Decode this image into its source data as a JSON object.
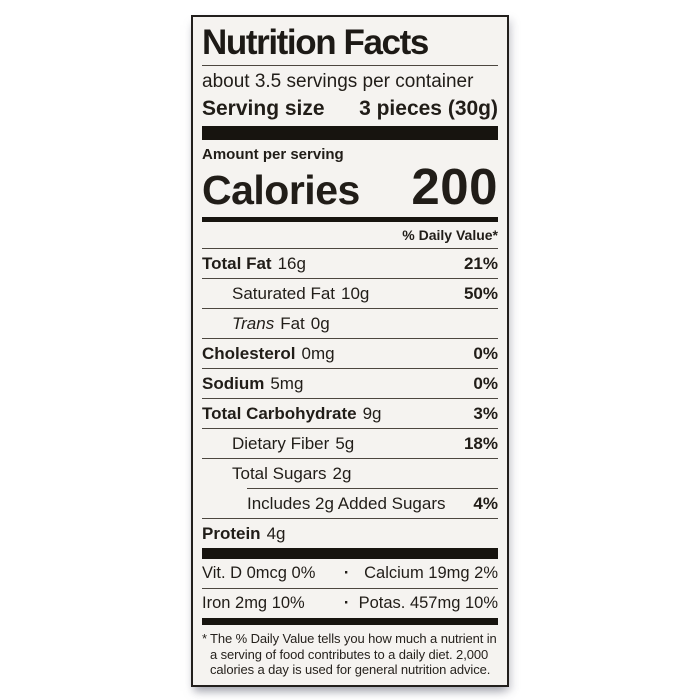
{
  "colors": {
    "page_bg": "#ffffff",
    "label_bg": "#f5f3f0",
    "ink": "#1d1a16",
    "bar": "#17140f",
    "hairline": "#4c463f"
  },
  "header": {
    "title": "Nutrition Facts",
    "servings_per_container": "about 3.5 servings per container",
    "serving_size_label": "Serving size",
    "serving_size_value": "3 pieces (30g)"
  },
  "calories": {
    "amount_per_serving": "Amount per serving",
    "label": "Calories",
    "value": "200"
  },
  "daily_value_header": "% Daily Value*",
  "rows": [
    {
      "name": "Total Fat",
      "amount": "16g",
      "dv": "21%"
    },
    {
      "name": "Saturated Fat",
      "amount": "10g",
      "dv": "50%"
    },
    {
      "name_italic": "Trans",
      "name": "Fat",
      "amount": "0g",
      "dv": ""
    },
    {
      "name": "Cholesterol",
      "amount": "0mg",
      "dv": "0%"
    },
    {
      "name": "Sodium",
      "amount": "5mg",
      "dv": "0%"
    },
    {
      "name": "Total Carbohydrate",
      "amount": "9g",
      "dv": "3%"
    },
    {
      "name": "Dietary Fiber",
      "amount": "5g",
      "dv": "18%"
    },
    {
      "name": "Total Sugars",
      "amount": "2g",
      "dv": ""
    },
    {
      "name": "Includes 2g Added Sugars",
      "amount": "",
      "dv": "4%"
    },
    {
      "name": "Protein",
      "amount": "4g",
      "dv": ""
    }
  ],
  "micronutrients": {
    "separator": "·",
    "rows": [
      {
        "left": "Vit. D 0mcg 0%",
        "right": "Calcium 19mg 2%"
      },
      {
        "left": "Iron 2mg 10%",
        "right": "Potas. 457mg 10%"
      }
    ]
  },
  "footnote": {
    "symbol": "*",
    "text": "The % Daily Value tells you how much a nutrient in a serving of food contributes to a daily diet. 2,000 calories a day is used for general nutrition advice."
  }
}
